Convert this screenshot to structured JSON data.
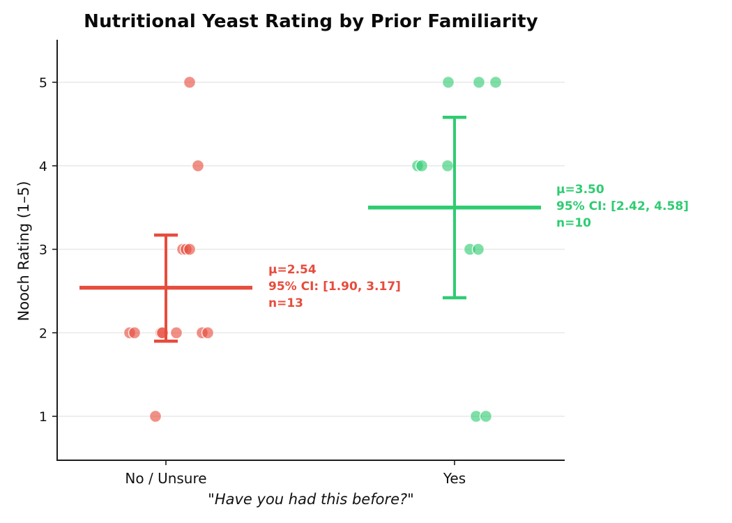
{
  "chart_data": {
    "type": "scatter",
    "title": "Nutritional Yeast Rating by Prior Familiarity",
    "xlabel": "\"Have you had this before?\"",
    "ylabel": "Nooch Rating (1–5)",
    "yticks": [
      1,
      2,
      3,
      4,
      5
    ],
    "ylim": [
      0.5,
      5.5
    ],
    "grid": "horizontal",
    "legend": "none",
    "categories": [
      "No / Unsure",
      "Yes"
    ],
    "style": {
      "grid_color": "#e8e8e8",
      "spine_color": "#1c1c1c",
      "background": "#ffffff"
    },
    "groups": [
      {
        "name": "No / Unsure",
        "color": "#e74c3c",
        "point_fill": "rgba(231,76,60,0.62)",
        "n": 13,
        "mean": 2.54,
        "ci": [
          1.9,
          3.17
        ],
        "values": [
          5,
          4,
          3,
          3,
          3,
          2,
          2,
          2,
          2,
          2,
          2,
          2,
          1
        ],
        "points": [
          {
            "value": 5,
            "dx": 34
          },
          {
            "value": 4,
            "dx": 46
          },
          {
            "value": 3,
            "dx": 24
          },
          {
            "value": 3,
            "dx": 29
          },
          {
            "value": 3,
            "dx": 34
          },
          {
            "value": 2,
            "dx": -52
          },
          {
            "value": 2,
            "dx": -45
          },
          {
            "value": 2,
            "dx": -7
          },
          {
            "value": 2,
            "dx": -5
          },
          {
            "value": 2,
            "dx": 15
          },
          {
            "value": 2,
            "dx": 52
          },
          {
            "value": 2,
            "dx": 60
          },
          {
            "value": 1,
            "dx": -15
          }
        ],
        "annotation": {
          "mean_label": "μ=2.54",
          "ci_label": "95% CI: [1.90, 3.17]",
          "n_label": "n=13"
        }
      },
      {
        "name": "Yes",
        "color": "#2ecc71",
        "point_fill": "rgba(46,204,113,0.62)",
        "n": 10,
        "mean": 3.5,
        "ci": [
          2.42,
          4.58
        ],
        "values": [
          5,
          5,
          5,
          4,
          4,
          4,
          3,
          3,
          1,
          1
        ],
        "points": [
          {
            "value": 5,
            "dx": -9
          },
          {
            "value": 5,
            "dx": 35
          },
          {
            "value": 5,
            "dx": 59
          },
          {
            "value": 4,
            "dx": -53
          },
          {
            "value": 4,
            "dx": -47
          },
          {
            "value": 4,
            "dx": -10
          },
          {
            "value": 3,
            "dx": 22
          },
          {
            "value": 3,
            "dx": 34
          },
          {
            "value": 1,
            "dx": 31
          },
          {
            "value": 1,
            "dx": 45
          }
        ],
        "annotation": {
          "mean_label": "μ=3.50",
          "ci_label": "95% CI: [2.42, 4.58]",
          "n_label": "n=10"
        }
      }
    ]
  }
}
